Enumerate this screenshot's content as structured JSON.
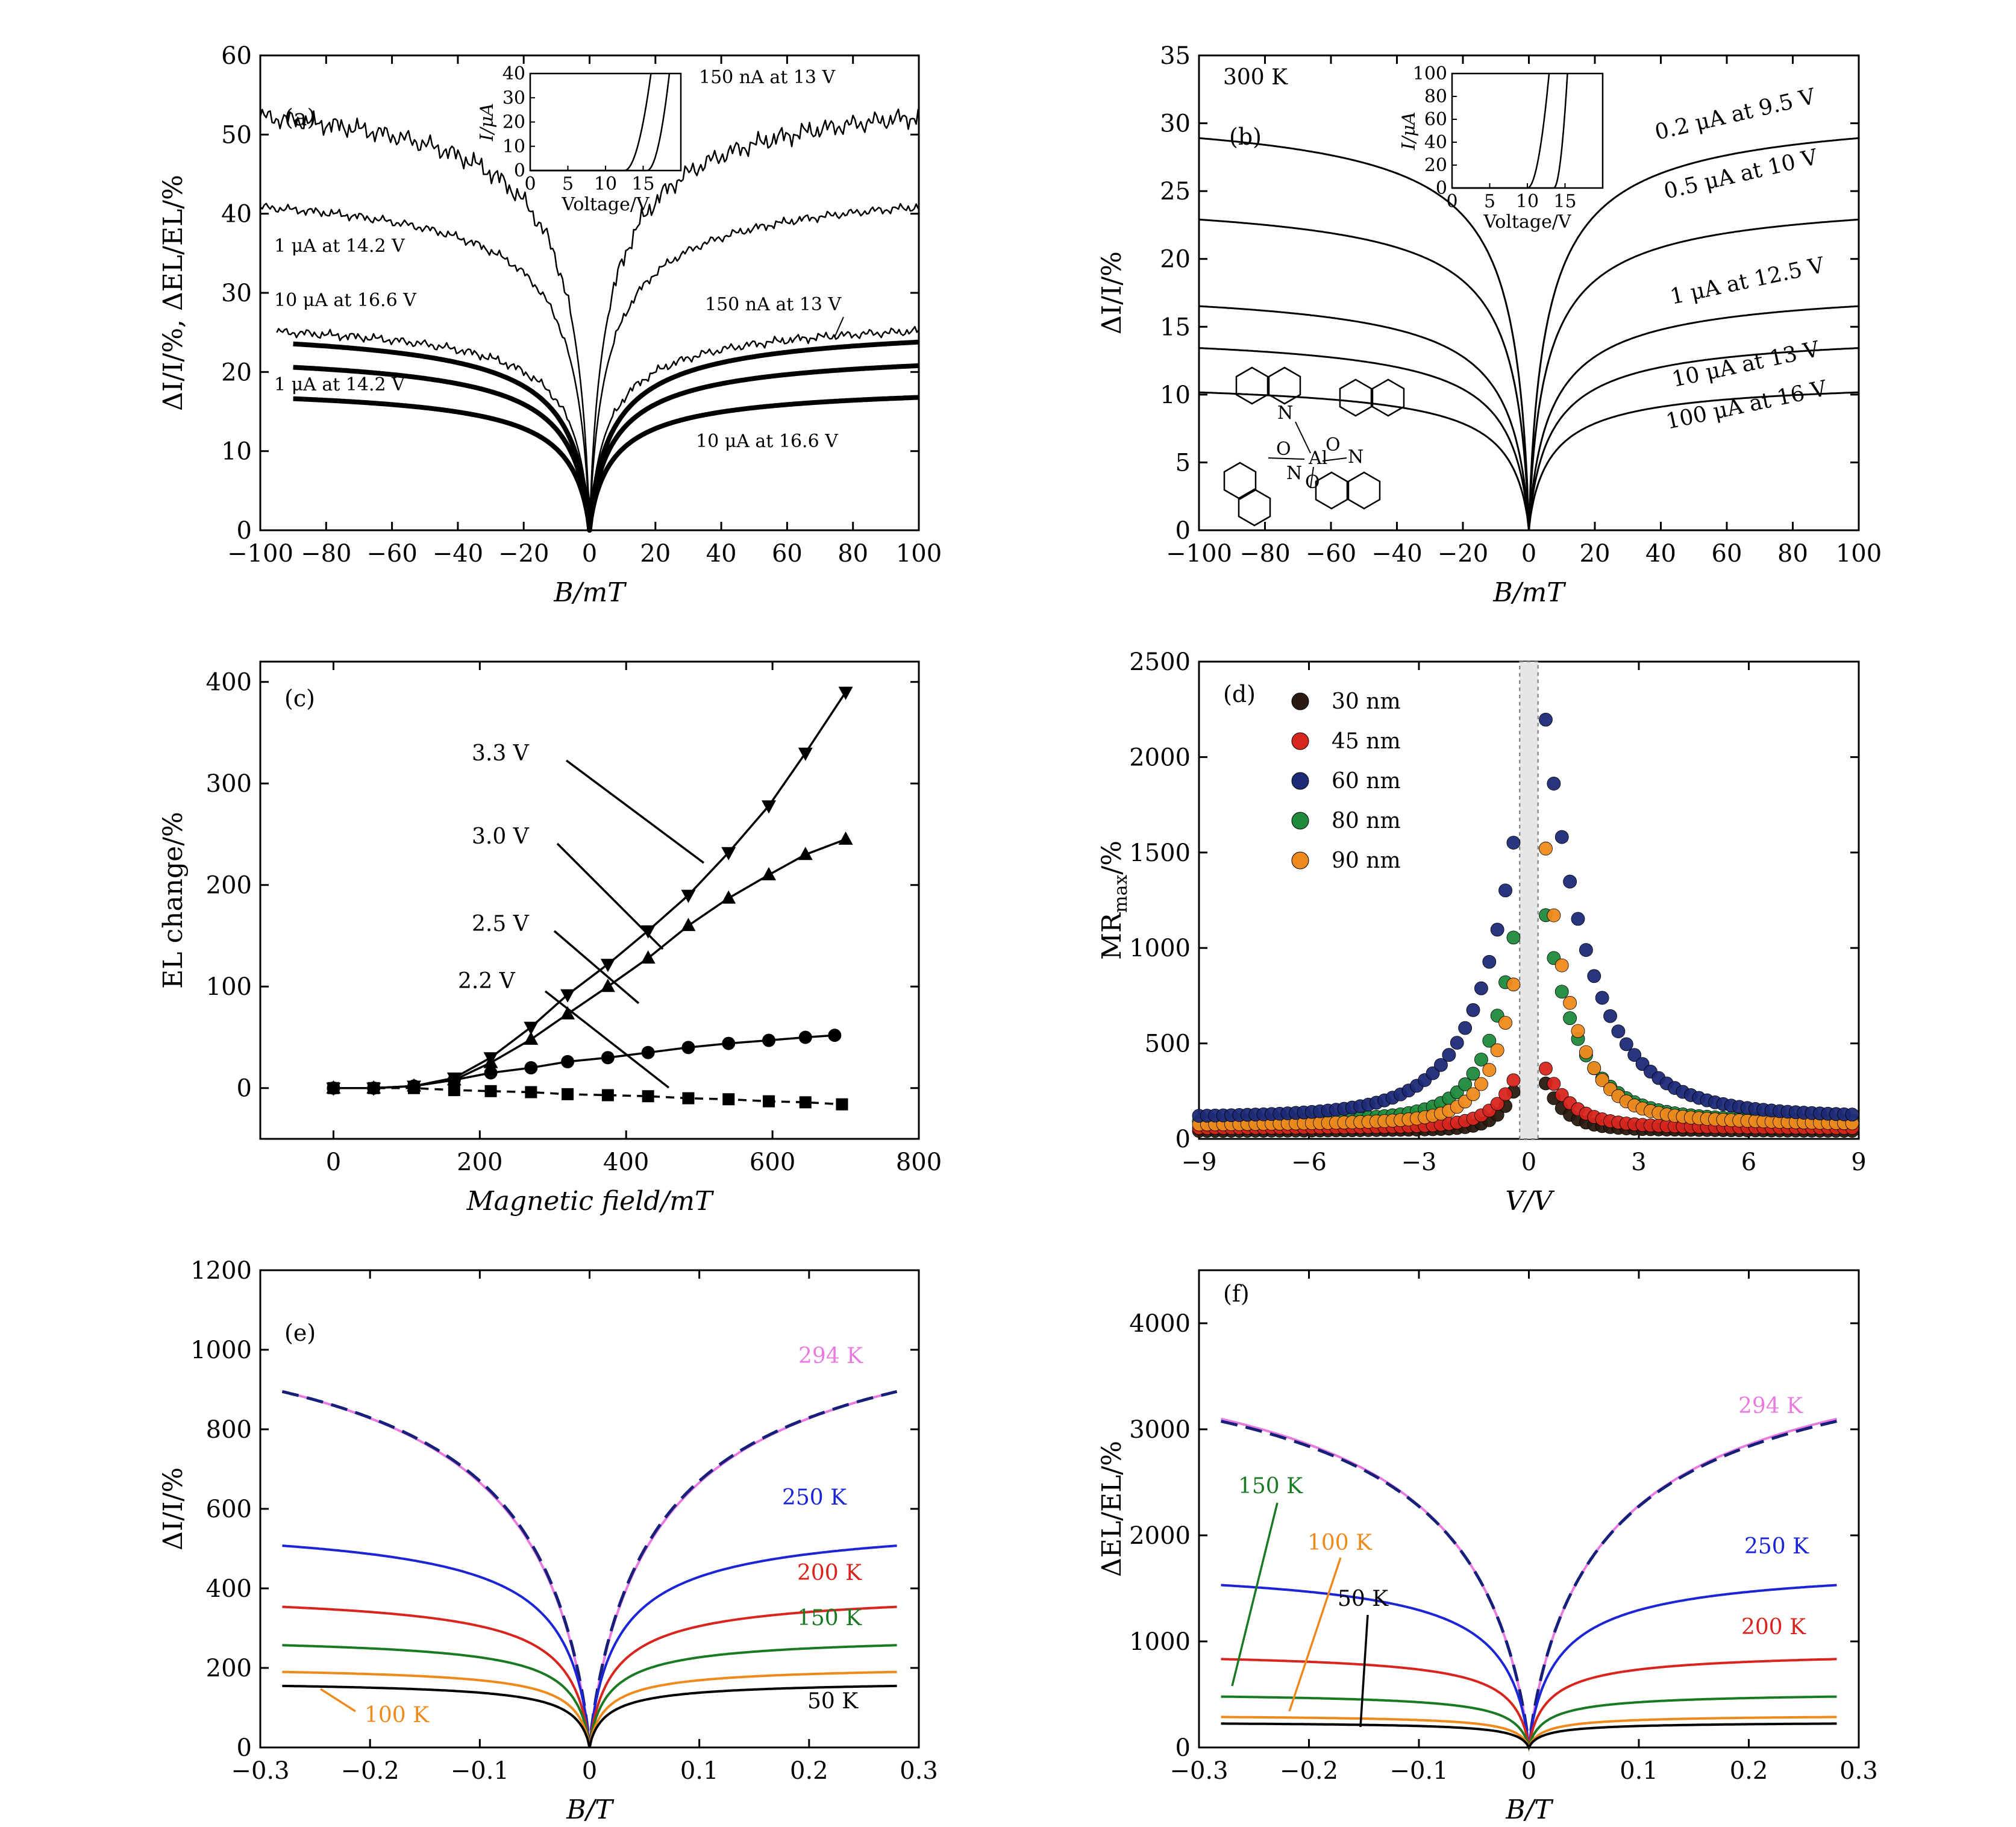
{
  "figure": {
    "panel_labels": [
      "(a)",
      "(b)",
      "(c)",
      "(d)",
      "(e)",
      "(f)"
    ]
  },
  "chart_data": [
    {
      "panel": "(a)",
      "type": "line",
      "xlabel": "B/mT",
      "ylabel": "ΔI/I/%, ΔEL/EL/%",
      "xlim": [
        -100,
        100
      ],
      "ylim": [
        0,
        60
      ],
      "xticks": [
        -100,
        -80,
        -60,
        -40,
        -20,
        0,
        20,
        40,
        60,
        80,
        100
      ],
      "yticks": [
        0,
        10,
        20,
        30,
        40,
        50,
        60
      ],
      "series": [
        {
          "name": "150 nA at 13 V (EL)",
          "sat": 55,
          "b0": 4,
          "x": [
            -100,
            100
          ],
          "noisy": true,
          "weight": "thin"
        },
        {
          "name": "1 μA at 14.2 V (EL)",
          "sat": 43,
          "b0": 4,
          "x": [
            -100,
            100
          ],
          "noisy": true,
          "weight": "thin"
        },
        {
          "name": "10 μA at 16.6 V (EL)",
          "sat": 26.5,
          "b0": 4,
          "x": [
            -95,
            100
          ],
          "noisy": true,
          "weight": "thin"
        },
        {
          "name": "150 nA at 13 V",
          "sat": 25.5,
          "b0": 5,
          "x": [
            -90,
            100
          ],
          "weight": "thick"
        },
        {
          "name": "1 μA at 14.2 V",
          "sat": 22.3,
          "b0": 5,
          "x": [
            -90,
            100
          ],
          "weight": "thick"
        },
        {
          "name": "10 μA at 16.6 V",
          "sat": 18,
          "b0": 5,
          "x": [
            -90,
            100
          ],
          "weight": "thick"
        }
      ],
      "annotations": [
        "150 nA at 13 V",
        "1 μA at 14.2 V",
        "10 μA at 16.6 V",
        "150 nA at 13 V",
        "1 μA at 14.2 V",
        "10 μA at 16.6 V"
      ],
      "inset": {
        "xlabel": "Voltage/V",
        "ylabel": "I/μA",
        "xlim": [
          0,
          20
        ],
        "ylim": [
          0,
          40
        ],
        "xticks": [
          0,
          5,
          10,
          15
        ],
        "yticks": [
          0,
          10,
          20,
          30,
          40
        ],
        "curves": [
          {
            "onset": 12.5,
            "k": 3.2
          },
          {
            "onset": 15.5,
            "k": 4.5
          }
        ]
      }
    },
    {
      "panel": "(b)",
      "type": "line",
      "xlabel": "B/mT",
      "ylabel": "ΔI/I/%",
      "title_text": "300 K",
      "xlim": [
        -100,
        100
      ],
      "ylim": [
        0,
        35
      ],
      "xticks": [
        -100,
        -80,
        -60,
        -40,
        -20,
        0,
        20,
        40,
        60,
        80,
        100
      ],
      "yticks": [
        0,
        5,
        10,
        15,
        20,
        25,
        30,
        35
      ],
      "series": [
        {
          "name": "0.2 μA at 9.5 V",
          "sat": 31.3,
          "b0": 4,
          "x": [
            -100,
            100
          ]
        },
        {
          "name": "0.5 μA at 10 V",
          "sat": 24.8,
          "b0": 4,
          "x": [
            -100,
            100
          ]
        },
        {
          "name": "1 μA at 12.5 V",
          "sat": 18.2,
          "b0": 5,
          "x": [
            -100,
            100
          ]
        },
        {
          "name": "10 μA at 13 V",
          "sat": 14.8,
          "b0": 5,
          "x": [
            -100,
            100
          ]
        },
        {
          "name": "100 μA at 16 V",
          "sat": 11.2,
          "b0": 5,
          "x": [
            -100,
            100
          ]
        }
      ],
      "annotations": [
        "0.2 μA at 9.5 V",
        "0.5 μA at 10 V",
        "1 μA at 12.5 V",
        "10 μA at 13 V",
        "100 μA at 16 V"
      ],
      "inset": {
        "xlabel": "Voltage/V",
        "ylabel": "I/μA",
        "xlim": [
          0,
          20
        ],
        "ylim": [
          0,
          100
        ],
        "xticks": [
          0,
          5,
          10,
          15
        ],
        "yticks": [
          0,
          20,
          40,
          60,
          80,
          100
        ],
        "curves": [
          {
            "onset": 10,
            "k": 12
          },
          {
            "onset": 13.5,
            "k": 30
          }
        ]
      },
      "molecule_labels": [
        "N",
        "O",
        "Al",
        "O",
        "N",
        "N",
        "O"
      ]
    },
    {
      "panel": "(c)",
      "type": "line",
      "xlabel": "Magnetic field/mT",
      "ylabel": "EL change/%",
      "xlim": [
        -100,
        800
      ],
      "ylim": [
        -50,
        420
      ],
      "xticks": [
        0,
        200,
        400,
        600,
        800
      ],
      "yticks": [
        0,
        100,
        200,
        300,
        400
      ],
      "series": [
        {
          "name": "3.3 V",
          "marker": "triangle-down",
          "x": [
            0,
            55,
            110,
            165,
            215,
            270,
            320,
            375,
            430,
            485,
            540,
            595,
            645,
            700
          ],
          "y": [
            0,
            0,
            2,
            10,
            30,
            60,
            92,
            122,
            155,
            190,
            232,
            278,
            330,
            390
          ]
        },
        {
          "name": "3.0 V",
          "marker": "triangle-up",
          "x": [
            0,
            55,
            110,
            165,
            215,
            270,
            320,
            375,
            430,
            485,
            540,
            595,
            645,
            700
          ],
          "y": [
            0,
            0,
            2,
            8,
            25,
            48,
            73,
            100,
            128,
            160,
            187,
            210,
            230,
            245
          ]
        },
        {
          "name": "2.5 V",
          "marker": "circle",
          "x": [
            0,
            55,
            110,
            165,
            215,
            270,
            320,
            375,
            430,
            485,
            540,
            595,
            645,
            685
          ],
          "y": [
            0,
            0,
            2,
            8,
            15,
            20,
            26,
            30,
            35,
            40,
            44,
            47,
            50,
            52
          ]
        },
        {
          "name": "2.2 V",
          "marker": "square",
          "dashed": true,
          "x": [
            0,
            55,
            110,
            165,
            215,
            270,
            320,
            375,
            430,
            485,
            540,
            595,
            645,
            695
          ],
          "y": [
            0,
            0,
            0,
            -2,
            -3,
            -4,
            -6,
            -7,
            -8,
            -10,
            -11,
            -13,
            -14,
            -16
          ]
        }
      ],
      "annotations": [
        "3.3 V",
        "3.0 V",
        "2.5 V",
        "2.2 V"
      ]
    },
    {
      "panel": "(d)",
      "type": "scatter",
      "xlabel": "V/V",
      "ylabel": "MR",
      "ylabel_sub": "max",
      "ylabel_suffix": "/%",
      "xlim": [
        -9,
        9
      ],
      "ylim": [
        0,
        2500
      ],
      "xticks": [
        -9,
        -6,
        -3,
        0,
        3,
        6,
        9
      ],
      "yticks": [
        0,
        500,
        1000,
        1500,
        2000,
        2500
      ],
      "series": [
        {
          "name": "30 nm",
          "color": "#2a1a10",
          "base": 40,
          "peakL": 290,
          "peakR": 350,
          "wL": 0.45,
          "wR": 0.55
        },
        {
          "name": "45 nm",
          "color": "#d7261e",
          "base": 55,
          "peakL": 340,
          "peakR": 420,
          "wL": 0.6,
          "wR": 0.7
        },
        {
          "name": "60 nm",
          "color": "#1d2a78",
          "base": 110,
          "peakL": 1620,
          "peakR": 2350,
          "wL": 1.1,
          "wR": 1.2
        },
        {
          "name": "80 nm",
          "color": "#1f8a3c",
          "base": 85,
          "peakL": 1150,
          "peakR": 1300,
          "wL": 0.75,
          "wR": 0.9
        },
        {
          "name": "90 nm",
          "color": "#ee8a1c",
          "base": 70,
          "peakL": 900,
          "peakR": 1750,
          "wL": 0.65,
          "wR": 0.75
        }
      ]
    },
    {
      "panel": "(e)",
      "type": "line",
      "xlabel": "B/T",
      "ylabel": "ΔI/I/%",
      "xlim": [
        -0.3,
        0.3
      ],
      "ylim": [
        0,
        1200
      ],
      "xticks": [
        -0.3,
        -0.2,
        -0.1,
        0,
        0.1,
        0.2,
        0.3
      ],
      "yticks": [
        0,
        200,
        400,
        600,
        800,
        1000,
        1200
      ],
      "series": [
        {
          "name": "294 K",
          "color": "#e87ae0",
          "sat": 1140,
          "b0": 0.075,
          "x": [
            -0.28,
            0.28
          ]
        },
        {
          "name": "294 K fit",
          "color": "#16207a",
          "dashed": true,
          "sat": 1130,
          "b0": 0.072,
          "x": [
            -0.28,
            0.28
          ]
        },
        {
          "name": "250 K",
          "color": "#1b25d6",
          "sat": 560,
          "b0": 0.03,
          "x": [
            -0.28,
            0.28
          ]
        },
        {
          "name": "200 K",
          "color": "#d8241c",
          "sat": 383,
          "b0": 0.025,
          "x": [
            -0.28,
            0.28
          ]
        },
        {
          "name": "150 K",
          "color": "#1a7a23",
          "sat": 273,
          "b0": 0.02,
          "x": [
            -0.28,
            0.28
          ]
        },
        {
          "name": "100 K",
          "color": "#ee8a1c",
          "sat": 200,
          "b0": 0.018,
          "x": [
            -0.28,
            0.28
          ]
        },
        {
          "name": "50 K",
          "color": "#000000",
          "sat": 163,
          "b0": 0.018,
          "x": [
            -0.28,
            0.28
          ]
        }
      ],
      "annotations": [
        "294 K",
        "250 K",
        "200 K",
        "150 K",
        "100 K",
        "50 K"
      ]
    },
    {
      "panel": "(f)",
      "type": "line",
      "xlabel": "B/T",
      "ylabel": "ΔEL/EL/%",
      "xlim": [
        -0.3,
        0.3
      ],
      "ylim": [
        0,
        4500
      ],
      "xticks": [
        -0.3,
        -0.2,
        -0.1,
        0,
        0.1,
        0.2,
        0.3
      ],
      "yticks": [
        0,
        1000,
        2000,
        3000,
        4000
      ],
      "series": [
        {
          "name": "294 K",
          "color": "#e87ae0",
          "sat": 4000,
          "b0": 0.08,
          "x": [
            -0.28,
            0.28
          ]
        },
        {
          "name": "294 K fit",
          "color": "#16207a",
          "dashed": true,
          "sat": 3950,
          "b0": 0.078,
          "x": [
            -0.28,
            0.28
          ]
        },
        {
          "name": "250 K",
          "color": "#1b25d6",
          "sat": 1690,
          "b0": 0.03,
          "x": [
            -0.28,
            0.28
          ]
        },
        {
          "name": "200 K",
          "color": "#d8241c",
          "sat": 885,
          "b0": 0.02,
          "x": [
            -0.28,
            0.28
          ]
        },
        {
          "name": "150 K",
          "color": "#1a7a23",
          "sat": 505,
          "b0": 0.018,
          "x": [
            -0.28,
            0.28
          ]
        },
        {
          "name": "100 K",
          "color": "#ee8a1c",
          "sat": 300,
          "b0": 0.016,
          "x": [
            -0.28,
            0.28
          ]
        },
        {
          "name": "50 K",
          "color": "#000000",
          "sat": 235,
          "b0": 0.016,
          "x": [
            -0.28,
            0.28
          ]
        }
      ],
      "annotations": [
        "294 K",
        "250 K",
        "200 K",
        "150 K",
        "100 K",
        "50 K"
      ]
    }
  ]
}
